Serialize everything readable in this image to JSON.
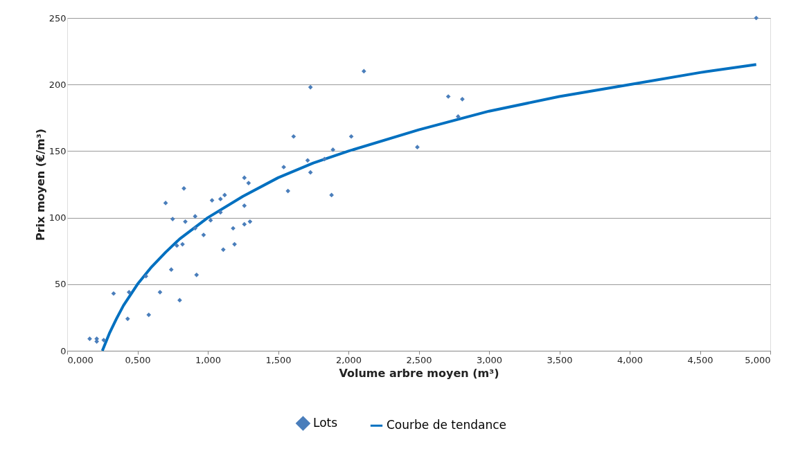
{
  "chart_data": {
    "type": "scatter",
    "xlabel": "Volume arbre moyen (m³)",
    "ylabel": "Prix moyen (€/m³)",
    "xlim": [
      0,
      5
    ],
    "ylim": [
      0,
      250
    ],
    "xticks": [
      {
        "value": 0,
        "label": "0,000"
      },
      {
        "value": 0.5,
        "label": "0,500"
      },
      {
        "value": 1,
        "label": "1,000"
      },
      {
        "value": 1.5,
        "label": "1,500"
      },
      {
        "value": 2,
        "label": "2,000"
      },
      {
        "value": 2.5,
        "label": "2,500"
      },
      {
        "value": 3,
        "label": "3,000"
      },
      {
        "value": 3.5,
        "label": "3,500"
      },
      {
        "value": 4,
        "label": "4,000"
      },
      {
        "value": 4.5,
        "label": "4,500"
      },
      {
        "value": 5,
        "label": "5,000"
      }
    ],
    "yticks": [
      0,
      50,
      100,
      150,
      200,
      250
    ],
    "grid": "y",
    "legend": "bottom",
    "series": [
      {
        "name": "Lots",
        "marker": "diamond",
        "color": "#4a7ebb",
        "x": [
          0.16,
          0.21,
          0.21,
          0.26,
          0.33,
          0.43,
          0.44,
          0.56,
          0.58,
          0.66,
          0.7,
          0.74,
          0.75,
          0.8,
          0.78,
          0.82,
          0.83,
          0.84,
          0.91,
          0.91,
          0.92,
          0.97,
          1.02,
          1.03,
          1.09,
          1.09,
          1.12,
          1.11,
          1.18,
          1.19,
          1.26,
          1.29,
          1.26,
          1.26,
          1.3,
          1.54,
          1.57,
          1.61,
          1.71,
          1.73,
          1.73,
          1.83,
          1.88,
          1.89,
          2.02,
          2.11,
          2.49,
          2.71,
          2.78,
          2.81,
          4.9
        ],
        "values": [
          9,
          9,
          7,
          8,
          43,
          24,
          44,
          56,
          27,
          44,
          111,
          61,
          99,
          38,
          79,
          80,
          122,
          97,
          101,
          92,
          57,
          87,
          98,
          113,
          114,
          104,
          117,
          76,
          92,
          80,
          130,
          126,
          109,
          95,
          97,
          138,
          120,
          161,
          143,
          198,
          134,
          144,
          117,
          151,
          161,
          210,
          153,
          191,
          176,
          189,
          250
        ]
      },
      {
        "name": "Courbe de tendance",
        "type": "line",
        "color": "#0070c0",
        "x": [
          0.25,
          0.3,
          0.35,
          0.4,
          0.5,
          0.6,
          0.7,
          0.8,
          1.0,
          1.25,
          1.5,
          1.75,
          2.0,
          2.5,
          3.0,
          3.5,
          4.0,
          4.5,
          4.9
        ],
        "values": [
          0,
          13,
          24,
          34,
          50,
          63,
          74,
          84,
          100,
          116,
          130,
          141,
          150,
          166,
          180,
          191,
          200,
          209,
          215
        ]
      }
    ]
  }
}
